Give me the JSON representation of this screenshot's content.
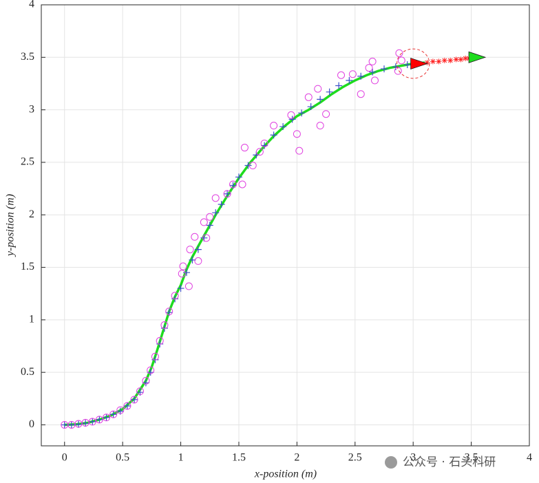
{
  "chart_data": {
    "type": "scatter",
    "xlabel": "x-position (m)",
    "ylabel": "y-position (m)",
    "xlim": [
      -0.2,
      4
    ],
    "ylim": [
      -0.2,
      4
    ],
    "xticks": [
      0,
      0.5,
      1,
      1.5,
      2,
      2.5,
      3,
      3.5,
      4
    ],
    "yticks": [
      0,
      0.5,
      1,
      1.5,
      2,
      2.5,
      3,
      3.5,
      4
    ],
    "grid": true,
    "series": [
      {
        "type": "line",
        "color": "#1edc1e",
        "x": [
          0,
          0.1,
          0.2,
          0.3,
          0.4,
          0.5,
          0.6,
          0.7,
          0.75,
          0.8,
          0.85,
          0.9,
          0.95,
          1.0,
          1.05,
          1.1,
          1.2,
          1.3,
          1.4,
          1.5,
          1.6,
          1.7,
          1.8,
          1.9,
          2.0,
          2.1,
          2.2,
          2.3,
          2.4,
          2.5,
          2.6,
          2.7,
          2.8,
          2.9,
          3.0,
          3.1
        ],
        "y": [
          0,
          0.005,
          0.02,
          0.05,
          0.09,
          0.15,
          0.25,
          0.42,
          0.55,
          0.72,
          0.9,
          1.08,
          1.22,
          1.33,
          1.48,
          1.6,
          1.8,
          2.0,
          2.18,
          2.35,
          2.5,
          2.63,
          2.75,
          2.85,
          2.94,
          3.0,
          3.07,
          3.15,
          3.22,
          3.28,
          3.33,
          3.37,
          3.4,
          3.42,
          3.44,
          3.45
        ]
      },
      {
        "type": "plus",
        "color": "#3b4fc8",
        "x": [
          0,
          0.06,
          0.12,
          0.18,
          0.24,
          0.3,
          0.36,
          0.42,
          0.48,
          0.54,
          0.6,
          0.65,
          0.7,
          0.74,
          0.78,
          0.82,
          0.86,
          0.9,
          0.95,
          1.0,
          1.05,
          1.1,
          1.15,
          1.2,
          1.25,
          1.3,
          1.35,
          1.4,
          1.45,
          1.5,
          1.58,
          1.65,
          1.72,
          1.8,
          1.88,
          1.96,
          2.04,
          2.12,
          2.2,
          2.28,
          2.36,
          2.45,
          2.55,
          2.65,
          2.75,
          2.85,
          2.95
        ],
        "y": [
          0,
          0,
          0.005,
          0.015,
          0.03,
          0.05,
          0.07,
          0.1,
          0.13,
          0.18,
          0.24,
          0.31,
          0.4,
          0.5,
          0.62,
          0.77,
          0.92,
          1.07,
          1.2,
          1.3,
          1.45,
          1.57,
          1.67,
          1.78,
          1.9,
          2.02,
          2.1,
          2.2,
          2.28,
          2.36,
          2.47,
          2.57,
          2.66,
          2.76,
          2.84,
          2.91,
          2.97,
          3.03,
          3.1,
          3.17,
          3.23,
          3.28,
          3.32,
          3.36,
          3.39,
          3.41,
          3.43
        ]
      },
      {
        "type": "circle",
        "color": "#e040e0",
        "x": [
          0,
          0.06,
          0.12,
          0.18,
          0.24,
          0.3,
          0.36,
          0.42,
          0.48,
          0.54,
          0.6,
          0.65,
          0.7,
          0.74,
          0.78,
          0.82,
          0.86,
          0.9,
          0.95,
          1.01,
          1.02,
          1.07,
          1.08,
          1.12,
          1.15,
          1.2,
          1.22,
          1.25,
          1.3,
          1.4,
          1.45,
          1.53,
          1.55,
          1.62,
          1.68,
          1.72,
          1.8,
          1.95,
          2.0,
          2.02,
          2.1,
          2.18,
          2.2,
          2.25,
          2.38,
          2.48,
          2.55,
          2.62,
          2.65,
          2.67,
          2.87,
          2.88,
          2.9
        ],
        "y": [
          0,
          0,
          0.01,
          0.02,
          0.03,
          0.05,
          0.07,
          0.1,
          0.14,
          0.18,
          0.24,
          0.32,
          0.42,
          0.52,
          0.65,
          0.8,
          0.95,
          1.08,
          1.23,
          1.44,
          1.51,
          1.32,
          1.67,
          1.79,
          1.56,
          1.93,
          1.78,
          1.98,
          2.16,
          2.2,
          2.29,
          2.29,
          2.64,
          2.47,
          2.6,
          2.68,
          2.85,
          2.95,
          2.77,
          2.61,
          3.12,
          3.2,
          2.85,
          2.96,
          3.33,
          3.34,
          3.15,
          3.4,
          3.46,
          3.28,
          3.37,
          3.54,
          3.47
        ]
      },
      {
        "type": "star",
        "color": "#ff2020",
        "x": [
          3.12,
          3.17,
          3.22,
          3.27,
          3.32,
          3.37,
          3.41,
          3.45,
          3.48,
          3.5
        ],
        "y": [
          3.45,
          3.46,
          3.46,
          3.47,
          3.47,
          3.48,
          3.48,
          3.49,
          3.49,
          3.5
        ]
      }
    ],
    "circle": {
      "center": [
        3.0,
        3.44
      ],
      "radius": 0.14,
      "color": "#e83030"
    },
    "markers": [
      {
        "x": 3.05,
        "y": 3.44,
        "color": "#ff0000"
      },
      {
        "x": 3.55,
        "y": 3.5,
        "color": "#1edc1e"
      }
    ]
  },
  "watermark": "公众号 · 石头科研"
}
